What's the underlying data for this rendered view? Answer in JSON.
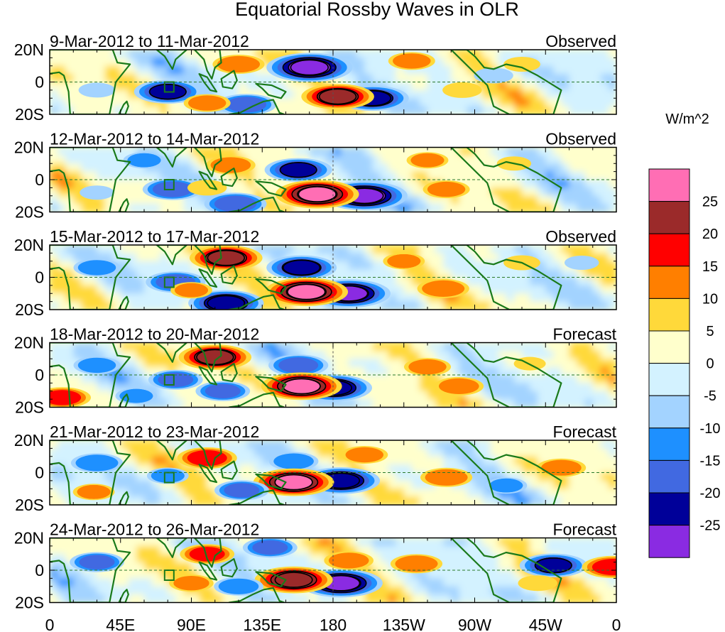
{
  "chart_data": {
    "type": "heatmap",
    "title": "Equatorial Rossby Waves in OLR",
    "units_label": "W/m^2",
    "longitude_ticks": [
      "0",
      "45E",
      "90E",
      "135E",
      "180",
      "135W",
      "90W",
      "45W",
      "0"
    ],
    "latitude_ticks": [
      "20N",
      "0",
      "20S"
    ],
    "lon_range_deg": [
      0,
      360
    ],
    "lat_range_deg": [
      -20,
      20
    ],
    "colorbar": {
      "levels": [
        "25",
        "20",
        "15",
        "10",
        "5",
        "0",
        "-5",
        "-10",
        "-15",
        "-20",
        "-25"
      ],
      "colors": [
        "#ff6eb4",
        "#9b2a2a",
        "#ff0000",
        "#ff7f00",
        "#ffd93a",
        "#ffffcc",
        "#d3f2ff",
        "#a3d3ff",
        "#1e90ff",
        "#4169e1",
        "#000099",
        "#8a2be2"
      ]
    },
    "panels": [
      {
        "period": "9-Mar-2012 to 11-Mar-2012",
        "status": "Observed",
        "anomalies": [
          {
            "lon": 165,
            "lat": 9,
            "value": -27
          },
          {
            "lon": 205,
            "lat": -10,
            "value": -22
          },
          {
            "lon": 183,
            "lat": -9,
            "value": 22
          },
          {
            "lon": 120,
            "lat": 11,
            "value": 14
          },
          {
            "lon": 75,
            "lat": -6,
            "value": -20
          },
          {
            "lon": 125,
            "lat": -14,
            "value": -17
          },
          {
            "lon": 230,
            "lat": 13,
            "value": 12
          },
          {
            "lon": 100,
            "lat": -13,
            "value": 12
          },
          {
            "lon": 262,
            "lat": -5,
            "value": 9
          },
          {
            "lon": 300,
            "lat": 11,
            "value": 8
          },
          {
            "lon": 282,
            "lat": 4,
            "value": -9
          },
          {
            "lon": 30,
            "lat": -5,
            "value": -8
          }
        ]
      },
      {
        "period": "12-Mar-2012 to 14-Mar-2012",
        "status": "Observed",
        "anomalies": [
          {
            "lon": 158,
            "lat": 6,
            "value": -20
          },
          {
            "lon": 200,
            "lat": -10,
            "value": -27
          },
          {
            "lon": 170,
            "lat": -9,
            "value": 26
          },
          {
            "lon": 115,
            "lat": 9,
            "value": 13
          },
          {
            "lon": 78,
            "lat": -6,
            "value": -17
          },
          {
            "lon": 118,
            "lat": -15,
            "value": -18
          },
          {
            "lon": 240,
            "lat": 12,
            "value": 10
          },
          {
            "lon": 100,
            "lat": -5,
            "value": 9
          },
          {
            "lon": 252,
            "lat": -6,
            "value": 12
          },
          {
            "lon": 295,
            "lat": 10,
            "value": 7
          },
          {
            "lon": 60,
            "lat": 12,
            "value": -10
          },
          {
            "lon": 30,
            "lat": -8,
            "value": -7
          }
        ]
      },
      {
        "period": "15-Mar-2012 to 17-Mar-2012",
        "status": "Observed",
        "anomalies": [
          {
            "lon": 160,
            "lat": 6,
            "value": -21
          },
          {
            "lon": 190,
            "lat": -10,
            "value": -26
          },
          {
            "lon": 163,
            "lat": -9,
            "value": 26
          },
          {
            "lon": 112,
            "lat": 12,
            "value": 22
          },
          {
            "lon": 80,
            "lat": -3,
            "value": -17
          },
          {
            "lon": 112,
            "lat": -16,
            "value": -23
          },
          {
            "lon": 225,
            "lat": 10,
            "value": 10
          },
          {
            "lon": 250,
            "lat": -7,
            "value": 14
          },
          {
            "lon": 90,
            "lat": -8,
            "value": 10
          },
          {
            "lon": 300,
            "lat": 9,
            "value": 8
          },
          {
            "lon": 30,
            "lat": 6,
            "value": -12
          },
          {
            "lon": 338,
            "lat": 9,
            "value": -7
          }
        ]
      },
      {
        "period": "18-Mar-2012 to 20-Mar-2012",
        "status": "Forecast",
        "anomalies": [
          {
            "lon": 158,
            "lat": 6,
            "value": -17
          },
          {
            "lon": 180,
            "lat": -8,
            "value": -24
          },
          {
            "lon": 160,
            "lat": -7,
            "value": 25
          },
          {
            "lon": 105,
            "lat": 11,
            "value": 22
          },
          {
            "lon": 80,
            "lat": -3,
            "value": -15
          },
          {
            "lon": 110,
            "lat": -10,
            "value": -15
          },
          {
            "lon": 240,
            "lat": 5,
            "value": 12
          },
          {
            "lon": 260,
            "lat": -7,
            "value": 13
          },
          {
            "lon": 8,
            "lat": -14,
            "value": 16
          },
          {
            "lon": 305,
            "lat": 7,
            "value": 6
          },
          {
            "lon": 30,
            "lat": 6,
            "value": -12
          },
          {
            "lon": 55,
            "lat": -13,
            "value": -10
          }
        ]
      },
      {
        "period": "21-Mar-2012 to 23-Mar-2012",
        "status": "Forecast",
        "anomalies": [
          {
            "lon": 155,
            "lat": 7,
            "value": -13
          },
          {
            "lon": 185,
            "lat": -5,
            "value": -24
          },
          {
            "lon": 155,
            "lat": -6,
            "value": 25
          },
          {
            "lon": 100,
            "lat": 9,
            "value": 17
          },
          {
            "lon": 75,
            "lat": -2,
            "value": -10
          },
          {
            "lon": 122,
            "lat": -11,
            "value": -15
          },
          {
            "lon": 252,
            "lat": -3,
            "value": 14
          },
          {
            "lon": 200,
            "lat": 11,
            "value": 12
          },
          {
            "lon": 28,
            "lat": -12,
            "value": 10
          },
          {
            "lon": 325,
            "lat": 3,
            "value": 13
          },
          {
            "lon": 30,
            "lat": 6,
            "value": -14
          },
          {
            "lon": 290,
            "lat": -8,
            "value": -10
          }
        ]
      },
      {
        "period": "24-Mar-2012 to 26-Mar-2012",
        "status": "Forecast",
        "anomalies": [
          {
            "lon": 140,
            "lat": 14,
            "value": -15
          },
          {
            "lon": 185,
            "lat": -8,
            "value": -26
          },
          {
            "lon": 155,
            "lat": -6,
            "value": 24
          },
          {
            "lon": 100,
            "lat": 10,
            "value": 15
          },
          {
            "lon": 90,
            "lat": -8,
            "value": 11
          },
          {
            "lon": 120,
            "lat": -10,
            "value": -13
          },
          {
            "lon": 233,
            "lat": 4,
            "value": 14
          },
          {
            "lon": 190,
            "lat": 6,
            "value": 13
          },
          {
            "lon": 320,
            "lat": 3,
            "value": -20
          },
          {
            "lon": 358,
            "lat": 2,
            "value": 18
          },
          {
            "lon": 30,
            "lat": 5,
            "value": -15
          },
          {
            "lon": 310,
            "lat": -8,
            "value": 9
          }
        ]
      }
    ]
  }
}
